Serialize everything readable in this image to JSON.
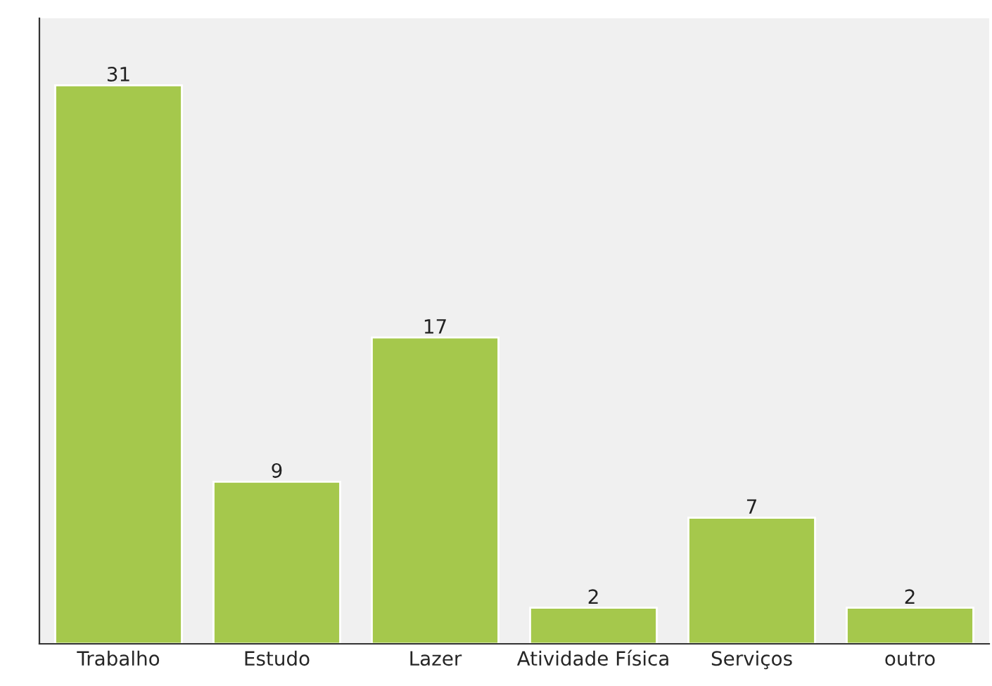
{
  "chart_data": {
    "type": "bar",
    "categories": [
      "Trabalho",
      "Estudo",
      "Lazer",
      "Atividade Física",
      "Serviços",
      "outro"
    ],
    "values": [
      31,
      9,
      17,
      2,
      7,
      2
    ],
    "color": "#a5c84c",
    "data_labels": true,
    "tick_labels": "x",
    "grid": false,
    "legend": false
  }
}
